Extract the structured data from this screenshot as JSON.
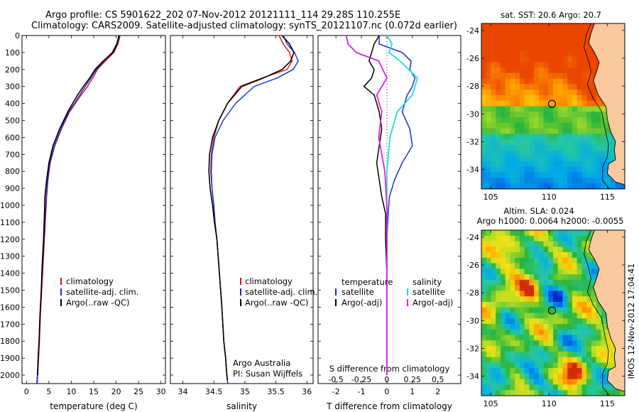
{
  "header": {
    "line1": "Argo profile: CS 5901622_202 07-Nov-2012 20121111_114 29.28S 110.255E",
    "line2": "Climatology: CARS2009. Satellite-adjusted climatology: synTS_20121107.nc (0.072d earlier)"
  },
  "depth_ticks": [
    0,
    100,
    200,
    300,
    400,
    500,
    600,
    700,
    800,
    900,
    1000,
    1100,
    1200,
    1300,
    1400,
    1500,
    1600,
    1700,
    1800,
    1900,
    2000
  ],
  "panels": {
    "temperature": {
      "xlabel": "temperature (deg C)",
      "xticks": [
        0,
        5,
        10,
        15,
        20,
        25,
        30
      ],
      "legend": [
        "climatology",
        "satellite-adj. clim.",
        "Argo(..raw -QC)"
      ]
    },
    "salinity": {
      "xlabel": "salinity",
      "xticks": [
        "34",
        "34.5",
        "35",
        "35.5",
        "36"
      ],
      "legend": [
        "climatology",
        "satellite-adj. clim.",
        "Argo(..raw -QC)"
      ],
      "note1": "Argo Australia",
      "note2": "PI: Susan Wijffels"
    },
    "difference": {
      "xlabel": "T difference from climatology",
      "top_label": "S difference from climatology",
      "t_ticks": [
        "-2",
        "-1",
        "0",
        "1",
        "2"
      ],
      "s_ticks": [
        "-0.5",
        "-0.25",
        "0",
        "0.25",
        "0.5"
      ],
      "legend_t_title": "temperature",
      "legend_s_title": "salinity",
      "legend_t": [
        "satellite",
        "Argo(-adj)"
      ],
      "legend_s": [
        "satellite",
        "Argo(-adj)"
      ]
    }
  },
  "maps": {
    "sst_title": "sat. SST: 20.6  Argo: 20.7",
    "sla_title1": "Altim. SLA: 0.024",
    "sla_title2": "Argo h1000: 0.0064  h2000: -0.0055",
    "lat_ticks": [
      "-24",
      "-26",
      "-28",
      "-30",
      "-32",
      "-34"
    ],
    "lon_ticks": [
      "105",
      "110",
      "115"
    ],
    "stamp": "IMOS 12-Nov-2012 17:04:41"
  },
  "colors": {
    "climatology": "#e01010",
    "satellite": "#1030e0",
    "argo": "#000000",
    "sal_satellite": "#22dddd",
    "sal_argo": "#e020e0",
    "land": "#f9c89c"
  },
  "chart_data": [
    {
      "type": "line",
      "xlabel": "temperature (deg C)",
      "ylabel": "",
      "xlim": [
        -1,
        31
      ],
      "ylim": [
        2050,
        0
      ],
      "series": [
        {
          "name": "climatology",
          "x": [
            20.9,
            20.4,
            19.5,
            17.6,
            15.8,
            14.8,
            13.6,
            12.2,
            10.9,
            9.6,
            7.8,
            6.3,
            5.3,
            4.8,
            4.5,
            4.3,
            4.0,
            3.7,
            3.4,
            3.1,
            2.9,
            2.7,
            2.5,
            2.4
          ],
          "y": [
            0,
            50,
            100,
            150,
            200,
            250,
            300,
            350,
            400,
            450,
            550,
            650,
            750,
            850,
            950,
            1050,
            1200,
            1350,
            1500,
            1650,
            1800,
            1900,
            2000,
            2050
          ]
        },
        {
          "name": "satellite-adj. clim.",
          "x": [
            20.6,
            20.1,
            19.1,
            17.3,
            15.6,
            14.4,
            13.1,
            11.9,
            10.7,
            9.4,
            7.7,
            6.2,
            5.2,
            4.7,
            4.4,
            4.2,
            3.9,
            3.6,
            3.3,
            3.0,
            2.8,
            2.6,
            2.4,
            2.3
          ],
          "y": [
            0,
            50,
            100,
            150,
            200,
            250,
            300,
            350,
            400,
            450,
            550,
            650,
            750,
            850,
            950,
            1050,
            1200,
            1350,
            1500,
            1650,
            1800,
            1900,
            2000,
            2050
          ]
        },
        {
          "name": "Argo(..raw -QC)",
          "x": [
            20.7,
            20.2,
            19.3,
            17.1,
            15.3,
            14.1,
            12.7,
            11.4,
            10.3,
            9.2,
            7.4,
            5.9,
            5.0,
            4.5,
            4.1,
            4.0,
            3.8,
            3.5,
            3.3,
            3.0,
            2.8,
            2.6,
            2.5
          ],
          "y": [
            0,
            50,
            100,
            150,
            200,
            250,
            300,
            350,
            400,
            450,
            550,
            650,
            750,
            850,
            950,
            1050,
            1200,
            1350,
            1500,
            1650,
            1800,
            1900,
            2000
          ]
        }
      ]
    },
    {
      "type": "line",
      "xlabel": "salinity",
      "ylabel": "",
      "xlim": [
        33.8,
        36.1
      ],
      "ylim": [
        2050,
        0
      ],
      "series": [
        {
          "name": "climatology",
          "x": [
            35.55,
            35.62,
            35.72,
            35.76,
            35.68,
            35.28,
            34.92,
            34.72,
            34.58,
            34.5,
            34.46,
            34.45,
            34.47,
            34.5,
            34.52,
            34.55,
            34.59,
            34.63,
            34.66,
            34.69,
            34.71,
            34.72,
            34.73
          ],
          "y": [
            0,
            50,
            100,
            150,
            200,
            250,
            300,
            400,
            500,
            600,
            700,
            800,
            900,
            1000,
            1100,
            1200,
            1400,
            1600,
            1800,
            1900,
            2000,
            2040,
            2050
          ]
        },
        {
          "name": "satellite-adj. clim.",
          "x": [
            35.62,
            35.68,
            35.8,
            35.86,
            35.78,
            35.52,
            35.15,
            34.85,
            34.65,
            34.52,
            34.47,
            34.46,
            34.47,
            34.5,
            34.52,
            34.55,
            34.59,
            34.63,
            34.66,
            34.69,
            34.71,
            34.72,
            34.73
          ],
          "y": [
            0,
            50,
            100,
            150,
            200,
            250,
            300,
            400,
            500,
            600,
            700,
            800,
            900,
            1000,
            1100,
            1200,
            1400,
            1600,
            1800,
            1900,
            2000,
            2040,
            2050
          ]
        },
        {
          "name": "Argo(..raw -QC)",
          "x": [
            35.6,
            35.72,
            35.79,
            35.74,
            35.6,
            35.3,
            34.95,
            34.72,
            34.58,
            34.48,
            34.43,
            34.42,
            34.44,
            34.48,
            34.51,
            34.55,
            34.59,
            34.63,
            34.66,
            34.69,
            34.71,
            34.72
          ],
          "y": [
            0,
            50,
            100,
            150,
            200,
            250,
            300,
            400,
            500,
            600,
            700,
            800,
            900,
            1000,
            1100,
            1200,
            1400,
            1600,
            1800,
            1900,
            2000,
            2030
          ]
        }
      ]
    },
    {
      "type": "line",
      "xlabel": "T difference from climatology",
      "ylabel": "",
      "xlim": [
        -2.7,
        2.9
      ],
      "ylim": [
        2050,
        0
      ],
      "series": [
        {
          "name": "temperature satellite",
          "x": [
            -0.3,
            -0.3,
            0.6,
            0.95,
            0.9,
            1.1,
            1.0,
            0.8,
            0.7,
            0.6,
            0.9,
            1.0,
            0.6,
            0.3,
            0.1,
            0.05,
            0.0,
            0.0,
            0.0,
            0.0,
            0.0
          ],
          "y": [
            0,
            50,
            100,
            150,
            200,
            250,
            300,
            350,
            400,
            450,
            550,
            650,
            750,
            850,
            950,
            1050,
            1200,
            1400,
            1600,
            1800,
            2000
          ]
        },
        {
          "name": "temperature Argo(-adj)",
          "x": [
            -0.3,
            -0.5,
            -0.6,
            -0.7,
            -0.5,
            -0.6,
            -0.9,
            -0.5,
            -0.4,
            -0.3,
            -0.2,
            -0.3,
            -0.4,
            -0.3,
            -0.2,
            -0.05,
            -0.05,
            0.0,
            0.0,
            0.0,
            0.0
          ],
          "y": [
            0,
            50,
            100,
            150,
            200,
            250,
            300,
            350,
            400,
            450,
            550,
            650,
            750,
            850,
            950,
            1050,
            1200,
            1400,
            1600,
            1800,
            2000
          ]
        }
      ]
    },
    {
      "type": "line",
      "xlabel": "S difference from climatology",
      "ylabel": "",
      "xlim": [
        -0.675,
        0.725
      ],
      "ylim": [
        2050,
        0
      ],
      "series": [
        {
          "name": "salinity satellite",
          "x": [
            0.0,
            0.05,
            0.02,
            0.13,
            0.3,
            0.25,
            0.1,
            0.03,
            0.0,
            0.0,
            0.0,
            0.0,
            0.0
          ],
          "y": [
            0,
            50,
            100,
            150,
            250,
            350,
            450,
            600,
            800,
            1000,
            1300,
            1600,
            2000
          ]
        },
        {
          "name": "salinity Argo(-adj)",
          "x": [
            -0.4,
            -0.38,
            -0.3,
            -0.08,
            0.0,
            -0.1,
            -0.05,
            -0.08,
            -0.02,
            0.0,
            0.0,
            0.0
          ],
          "y": [
            0,
            50,
            100,
            150,
            250,
            350,
            450,
            600,
            800,
            1000,
            1500,
            2000
          ]
        }
      ]
    },
    {
      "type": "heatmap",
      "title": "sat. SST: 20.6  Argo: 20.7",
      "xlim": [
        104.2,
        116.5
      ],
      "ylim": [
        -35.4,
        -23.5
      ],
      "xticks": [
        105,
        110,
        115
      ],
      "yticks": [
        -24,
        -26,
        -28,
        -30,
        -32,
        -34
      ],
      "marker": {
        "lon": 110.255,
        "lat": -29.28
      }
    },
    {
      "type": "heatmap",
      "title": "Altim. SLA: 0.024",
      "xlim": [
        104.2,
        116.5
      ],
      "ylim": [
        -35.4,
        -23.5
      ],
      "xticks": [
        105,
        110,
        115
      ],
      "yticks": [
        -24,
        -26,
        -28,
        -30,
        -32,
        -34
      ],
      "marker": {
        "lon": 110.255,
        "lat": -29.28
      }
    }
  ]
}
